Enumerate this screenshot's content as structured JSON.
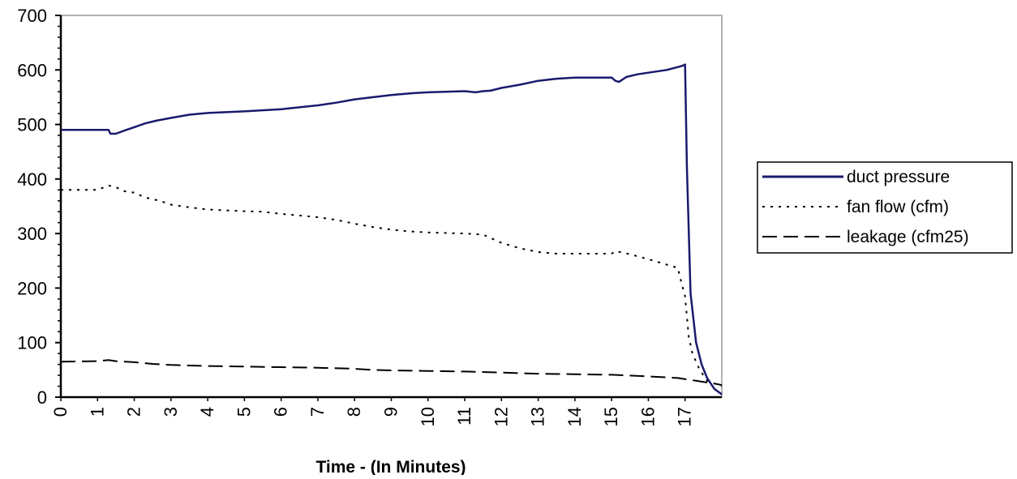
{
  "chart_data": {
    "type": "line",
    "title": "",
    "xlabel": "Time - (In Minutes)",
    "ylabel": "",
    "xlim": [
      0,
      18
    ],
    "ylim": [
      0,
      700
    ],
    "x_ticks": [
      "0",
      "1",
      "2",
      "3",
      "4",
      "5",
      "6",
      "7",
      "8",
      "9",
      "10",
      "11",
      "12",
      "13",
      "14",
      "15",
      "16",
      "17"
    ],
    "y_ticks": [
      "0",
      "100",
      "200",
      "300",
      "400",
      "500",
      "600",
      "700"
    ],
    "grid": false,
    "legend_position": "right",
    "series": [
      {
        "name": "duct pressure",
        "style": "solid",
        "color": "#1a1a6e",
        "points": [
          [
            0,
            490
          ],
          [
            1,
            490
          ],
          [
            1.3,
            490
          ],
          [
            1.35,
            483
          ],
          [
            1.5,
            483
          ],
          [
            1.7,
            488
          ],
          [
            2,
            495
          ],
          [
            2.3,
            502
          ],
          [
            2.6,
            507
          ],
          [
            3,
            512
          ],
          [
            3.5,
            518
          ],
          [
            4,
            521
          ],
          [
            5,
            524
          ],
          [
            6,
            528
          ],
          [
            7,
            535
          ],
          [
            7.5,
            540
          ],
          [
            8,
            546
          ],
          [
            8.5,
            550
          ],
          [
            9,
            554
          ],
          [
            9.5,
            557
          ],
          [
            10,
            559
          ],
          [
            11,
            561
          ],
          [
            11.3,
            559
          ],
          [
            11.5,
            561
          ],
          [
            11.7,
            562
          ],
          [
            12,
            567
          ],
          [
            12.5,
            573
          ],
          [
            13,
            580
          ],
          [
            13.5,
            584
          ],
          [
            14,
            586
          ],
          [
            15,
            586
          ],
          [
            15.1,
            580
          ],
          [
            15.2,
            578
          ],
          [
            15.4,
            587
          ],
          [
            15.7,
            592
          ],
          [
            16,
            595
          ],
          [
            16.5,
            600
          ],
          [
            16.9,
            607
          ],
          [
            17.0,
            610
          ],
          [
            17.05,
            420
          ],
          [
            17.15,
            190
          ],
          [
            17.3,
            100
          ],
          [
            17.45,
            60
          ],
          [
            17.6,
            35
          ],
          [
            17.8,
            15
          ],
          [
            18,
            5
          ]
        ]
      },
      {
        "name": "fan flow (cfm)",
        "style": "dotted",
        "color": "#000000",
        "points": [
          [
            0,
            380
          ],
          [
            1,
            380
          ],
          [
            1.3,
            388
          ],
          [
            1.5,
            385
          ],
          [
            1.7,
            378
          ],
          [
            2,
            375
          ],
          [
            2.3,
            366
          ],
          [
            2.7,
            360
          ],
          [
            3,
            353
          ],
          [
            3.5,
            348
          ],
          [
            4,
            344
          ],
          [
            5,
            341
          ],
          [
            5.5,
            340
          ],
          [
            6,
            336
          ],
          [
            6.5,
            333
          ],
          [
            7,
            330
          ],
          [
            7.5,
            325
          ],
          [
            8,
            318
          ],
          [
            8.5,
            312
          ],
          [
            9,
            307
          ],
          [
            9.5,
            304
          ],
          [
            10,
            302
          ],
          [
            10.5,
            301
          ],
          [
            11,
            300
          ],
          [
            11.5,
            298
          ],
          [
            12,
            283
          ],
          [
            12.5,
            273
          ],
          [
            13,
            266
          ],
          [
            13.5,
            263
          ],
          [
            14,
            263
          ],
          [
            15,
            263
          ],
          [
            15.1,
            268
          ],
          [
            15.5,
            262
          ],
          [
            16,
            253
          ],
          [
            16.5,
            243
          ],
          [
            16.8,
            237
          ],
          [
            16.9,
            210
          ],
          [
            17,
            185
          ],
          [
            17.1,
            110
          ],
          [
            17.2,
            80
          ],
          [
            17.4,
            50
          ],
          [
            17.6,
            30
          ],
          [
            17.8,
            25
          ],
          [
            18,
            20
          ]
        ]
      },
      {
        "name": "leakage (cfm25)",
        "style": "dashed",
        "color": "#000000",
        "points": [
          [
            0,
            65
          ],
          [
            1,
            66
          ],
          [
            1.3,
            68
          ],
          [
            1.5,
            66
          ],
          [
            2,
            64
          ],
          [
            2.5,
            61
          ],
          [
            3,
            59
          ],
          [
            4,
            57
          ],
          [
            5,
            56
          ],
          [
            6,
            55
          ],
          [
            7,
            54
          ],
          [
            8,
            52
          ],
          [
            8.5,
            50
          ],
          [
            9,
            49
          ],
          [
            10,
            48
          ],
          [
            11,
            47
          ],
          [
            12,
            45
          ],
          [
            13,
            43
          ],
          [
            14,
            42
          ],
          [
            15,
            41
          ],
          [
            16,
            38
          ],
          [
            16.8,
            35
          ],
          [
            17,
            33
          ],
          [
            17.3,
            30
          ],
          [
            17.5,
            28
          ],
          [
            17.8,
            25
          ],
          [
            18,
            22
          ]
        ]
      }
    ]
  }
}
